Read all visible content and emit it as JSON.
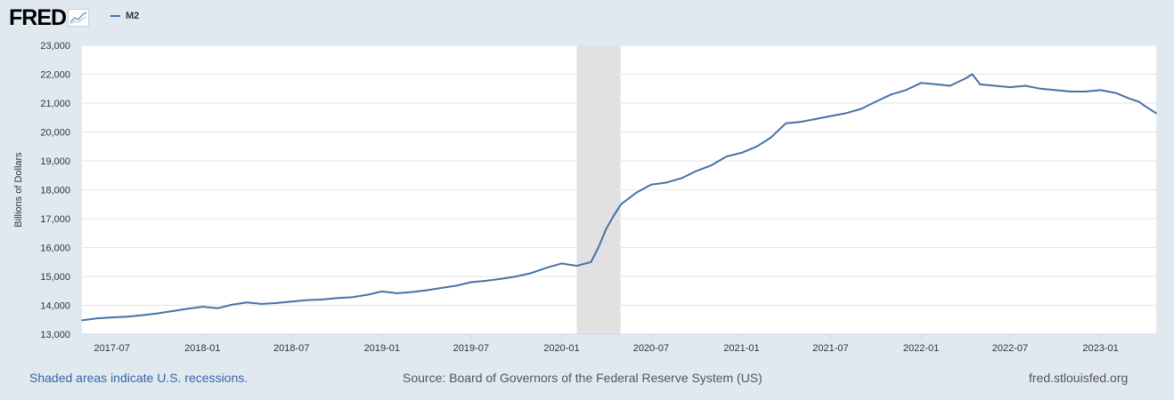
{
  "header": {
    "logo_text": "FRED",
    "legend_label": "M2"
  },
  "footer": {
    "recession_note": "Shaded areas indicate U.S. recessions.",
    "source": "Source: Board of Governors of the Federal Reserve System (US)",
    "site": "fred.stlouisfed.org"
  },
  "colors": {
    "series": "#4572a7",
    "recession": "#e1e1e1",
    "page_background": "#e1e9f0",
    "plot_background": "#ffffff"
  },
  "chart_data": {
    "type": "line",
    "title": "",
    "xlabel": "",
    "ylabel": "Billions of Dollars",
    "ylim": [
      13000,
      23000
    ],
    "xlim": [
      "2017-05-01",
      "2023-04-24"
    ],
    "yticks": [
      13000,
      14000,
      15000,
      16000,
      17000,
      18000,
      19000,
      20000,
      21000,
      22000,
      23000
    ],
    "ytick_labels": [
      "13,000",
      "14,000",
      "15,000",
      "16,000",
      "17,000",
      "18,000",
      "19,000",
      "20,000",
      "21,000",
      "22,000",
      "23,000"
    ],
    "xticks": [
      "2017-07",
      "2018-01",
      "2018-07",
      "2019-01",
      "2019-07",
      "2020-01",
      "2020-07",
      "2021-01",
      "2021-07",
      "2022-01",
      "2022-07",
      "2023-01"
    ],
    "grid": true,
    "legend_position": "top-left",
    "recessions": [
      {
        "start": "2020-02-01",
        "end": "2020-04-30"
      }
    ],
    "series": [
      {
        "name": "M2",
        "x": [
          "2017-05-01",
          "2017-06-01",
          "2017-07-01",
          "2017-08-01",
          "2017-09-01",
          "2017-10-01",
          "2017-11-01",
          "2017-12-01",
          "2018-01-01",
          "2018-02-01",
          "2018-03-01",
          "2018-04-01",
          "2018-05-01",
          "2018-06-01",
          "2018-07-01",
          "2018-08-01",
          "2018-09-01",
          "2018-10-01",
          "2018-11-01",
          "2018-12-01",
          "2019-01-01",
          "2019-02-01",
          "2019-03-01",
          "2019-04-01",
          "2019-05-01",
          "2019-06-01",
          "2019-07-01",
          "2019-08-01",
          "2019-09-01",
          "2019-10-01",
          "2019-11-01",
          "2019-12-01",
          "2020-01-01",
          "2020-02-01",
          "2020-03-01",
          "2020-03-16",
          "2020-04-01",
          "2020-04-16",
          "2020-05-01",
          "2020-06-01",
          "2020-07-01",
          "2020-08-01",
          "2020-09-01",
          "2020-10-01",
          "2020-11-01",
          "2020-12-01",
          "2021-01-01",
          "2021-02-01",
          "2021-03-01",
          "2021-04-01",
          "2021-05-01",
          "2021-06-01",
          "2021-07-01",
          "2021-08-01",
          "2021-09-01",
          "2021-10-01",
          "2021-11-01",
          "2021-12-01",
          "2022-01-01",
          "2022-02-01",
          "2022-03-01",
          "2022-04-01",
          "2022-04-15",
          "2022-05-01",
          "2022-06-01",
          "2022-07-01",
          "2022-08-01",
          "2022-09-01",
          "2022-10-01",
          "2022-11-01",
          "2022-12-01",
          "2023-01-01",
          "2023-02-01",
          "2023-03-01",
          "2023-03-20",
          "2023-04-01",
          "2023-04-24"
        ],
        "values": [
          13480,
          13550,
          13580,
          13610,
          13660,
          13720,
          13800,
          13880,
          13950,
          13900,
          14020,
          14100,
          14050,
          14080,
          14130,
          14180,
          14200,
          14250,
          14280,
          14360,
          14480,
          14420,
          14460,
          14520,
          14600,
          14680,
          14800,
          14850,
          14920,
          15000,
          15120,
          15300,
          15450,
          15370,
          15500,
          16000,
          16650,
          17100,
          17500,
          17900,
          18180,
          18250,
          18400,
          18650,
          18850,
          19150,
          19280,
          19500,
          19800,
          20300,
          20350,
          20450,
          20550,
          20650,
          20800,
          21050,
          21300,
          21450,
          21700,
          21650,
          21600,
          21850,
          22000,
          21650,
          21600,
          21550,
          21600,
          21500,
          21450,
          21400,
          21400,
          21450,
          21350,
          21150,
          21050,
          20900,
          20650
        ]
      }
    ]
  }
}
